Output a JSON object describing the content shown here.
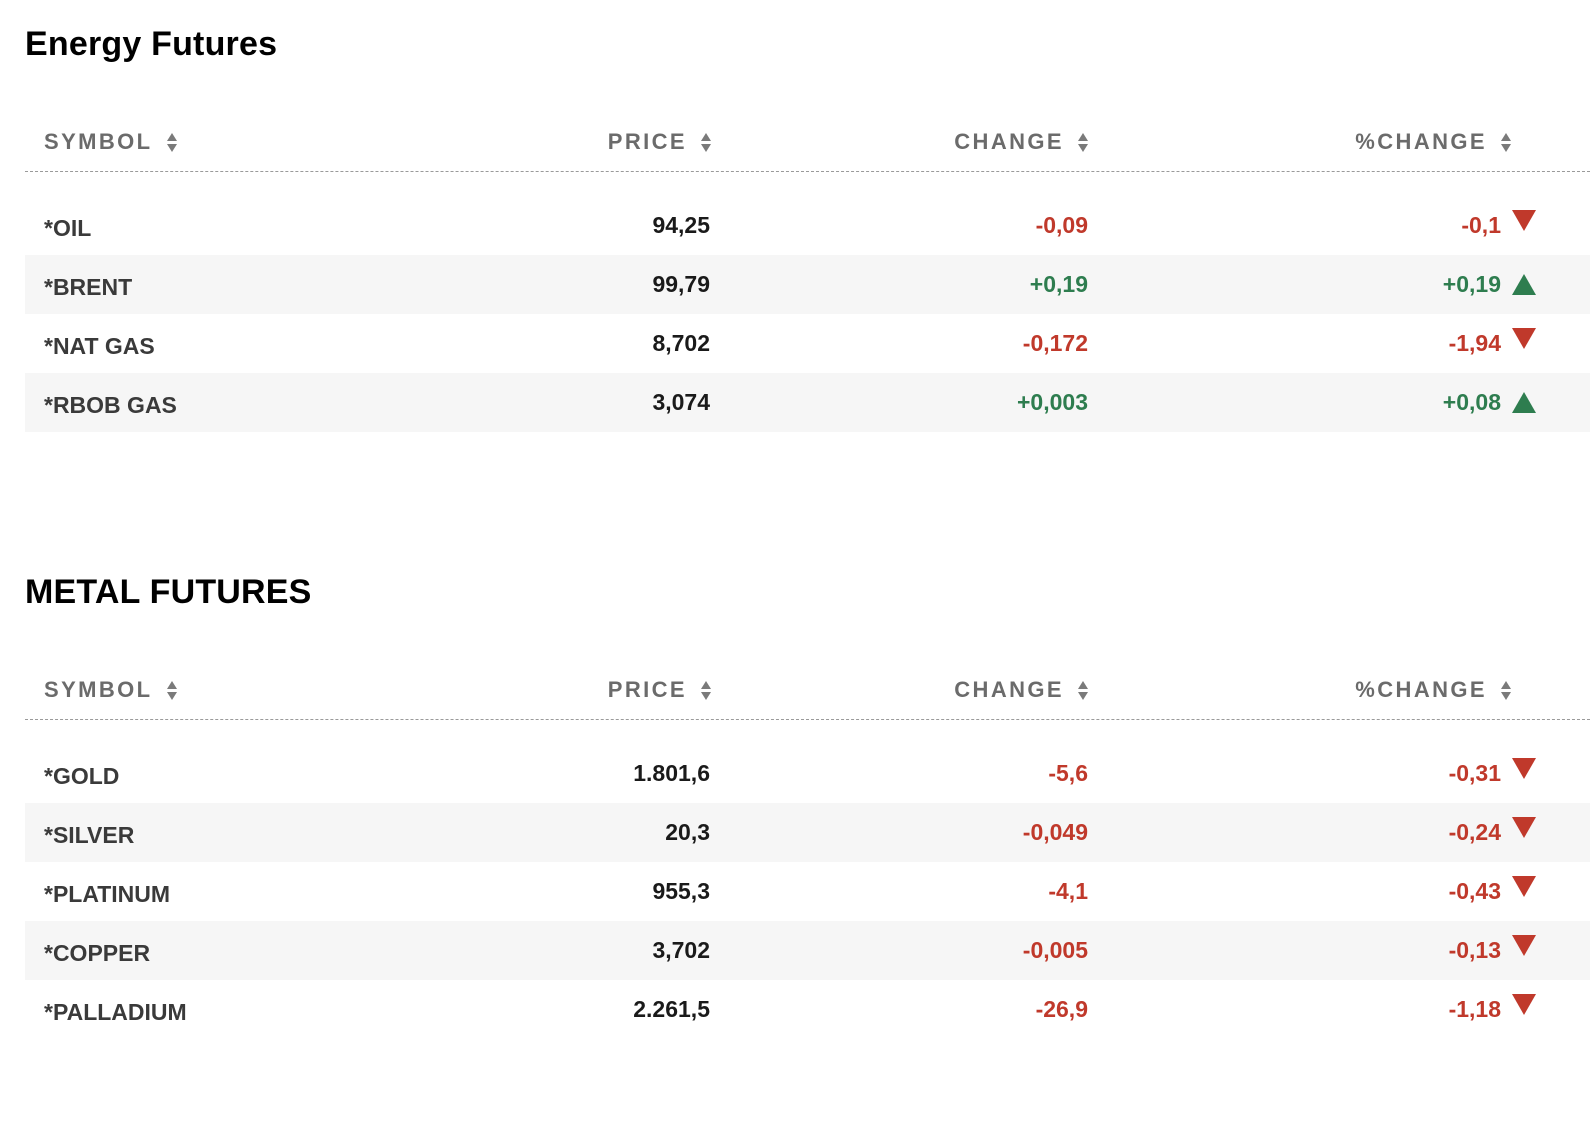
{
  "colors": {
    "negative": "#c0392b",
    "positive": "#2e7d4f",
    "header_text": "#6b6b6b",
    "row_alt_bg": "#f6f6f6"
  },
  "sections": [
    {
      "title": "Energy Futures",
      "headers": {
        "symbol": "SYMBOL",
        "price": "PRICE",
        "change": "CHANGE",
        "pct_change": "%CHANGE"
      },
      "rows": [
        {
          "symbol": "*OIL",
          "price": "94,25",
          "change": "-0,09",
          "pct_change": "-0,1",
          "direction": "down"
        },
        {
          "symbol": "*BRENT",
          "price": "99,79",
          "change": "+0,19",
          "pct_change": "+0,19",
          "direction": "up"
        },
        {
          "symbol": "*NAT GAS",
          "price": "8,702",
          "change": "-0,172",
          "pct_change": "-1,94",
          "direction": "down"
        },
        {
          "symbol": "*RBOB GAS",
          "price": "3,074",
          "change": "+0,003",
          "pct_change": "+0,08",
          "direction": "up"
        }
      ]
    },
    {
      "title": "METAL FUTURES",
      "headers": {
        "symbol": "SYMBOL",
        "price": "PRICE",
        "change": "CHANGE",
        "pct_change": "%CHANGE"
      },
      "rows": [
        {
          "symbol": "*GOLD",
          "price": "1.801,6",
          "change": "-5,6",
          "pct_change": "-0,31",
          "direction": "down"
        },
        {
          "symbol": "*SILVER",
          "price": "20,3",
          "change": "-0,049",
          "pct_change": "-0,24",
          "direction": "down"
        },
        {
          "symbol": "*PLATINUM",
          "price": "955,3",
          "change": "-4,1",
          "pct_change": "-0,43",
          "direction": "down"
        },
        {
          "symbol": "*COPPER",
          "price": "3,702",
          "change": "-0,005",
          "pct_change": "-0,13",
          "direction": "down"
        },
        {
          "symbol": "*PALLADIUM",
          "price": "2.261,5",
          "change": "-26,9",
          "pct_change": "-1,18",
          "direction": "down"
        }
      ]
    }
  ]
}
